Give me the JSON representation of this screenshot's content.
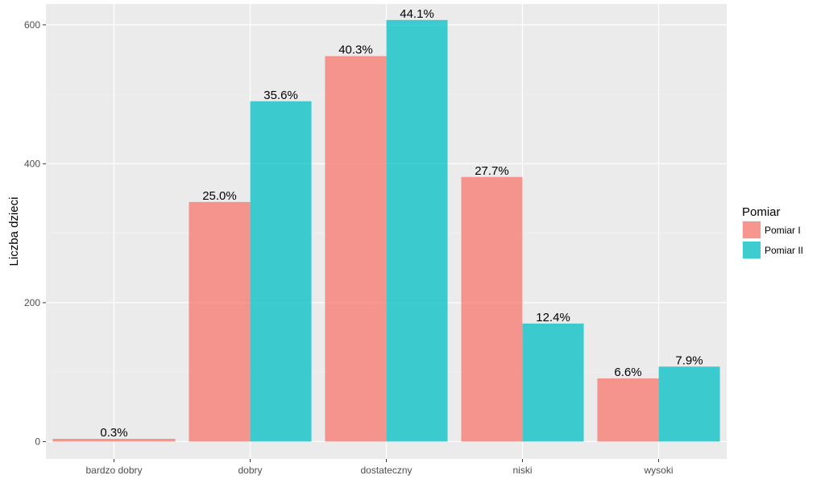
{
  "chart_data": {
    "type": "bar",
    "title": "",
    "xlabel": "",
    "ylabel": "Liczba dzieci",
    "categories": [
      "bardzo dobry",
      "dobry",
      "dostateczny",
      "niski",
      "wysoki"
    ],
    "series": [
      {
        "name": "Pomiar I",
        "color": "#F8766D",
        "values": [
          4,
          345,
          555,
          381,
          91
        ],
        "labels": [
          "0.3%",
          "25.0%",
          "40.3%",
          "27.7%",
          "6.6%"
        ]
      },
      {
        "name": "Pomiar II",
        "color": "#00BFC4",
        "values": [
          0,
          490,
          607,
          170,
          108
        ],
        "labels": [
          "",
          "35.6%",
          "44.1%",
          "12.4%",
          "7.9%"
        ]
      }
    ],
    "yticks": [
      0,
      200,
      400,
      600
    ],
    "ylim": [
      -25,
      630
    ],
    "grid": true,
    "legend": {
      "title": "Pomiar",
      "position": "right"
    }
  }
}
